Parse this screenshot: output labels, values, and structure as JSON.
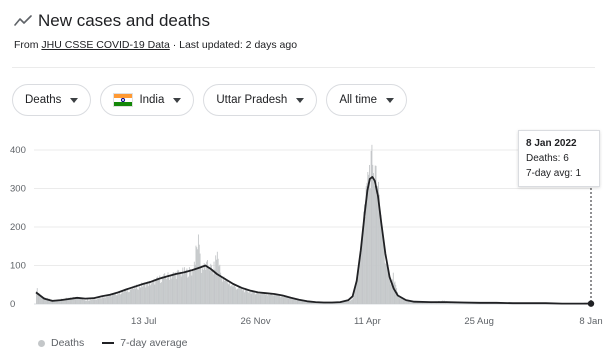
{
  "header": {
    "title": "New cases and deaths",
    "source_prefix": "From",
    "source_link": "JHU CSSE COVID-19 Data",
    "updated": "· Last updated: 2 days ago"
  },
  "filters": [
    {
      "label": "Deaths"
    },
    {
      "label": "India",
      "flag": "india-flag"
    },
    {
      "label": "Uttar Pradesh"
    },
    {
      "label": "All time"
    }
  ],
  "tooltip": {
    "date": "8 Jan 2022",
    "deaths": "Deaths: 6",
    "avg": "7-day avg: 1"
  },
  "legend": {
    "deaths": "Deaths",
    "avg": "7-day average"
  },
  "colors": {
    "bars": "#c4c7c9",
    "line": "#202124",
    "grid": "#ebebeb"
  },
  "chart_data": {
    "type": "bar",
    "title": "New cases and deaths",
    "x_ticks": [
      "13 Jul",
      "26 Nov",
      "11 Apr",
      "25 Aug",
      "8 Jan"
    ],
    "x_tick_days": [
      131,
      267,
      403,
      539,
      675
    ],
    "y_ticks": [
      0,
      100,
      200,
      300,
      400
    ],
    "ylim": [
      0,
      400
    ],
    "x_start": "2020-03-01",
    "x_end": "2022-01-08",
    "grid": true,
    "legend_position": "bottom-left",
    "series": [
      {
        "name": "Deaths",
        "type": "bar",
        "points": [
          [
            0,
            40
          ],
          [
            5,
            20
          ],
          [
            10,
            15
          ],
          [
            20,
            10
          ],
          [
            30,
            12
          ],
          [
            40,
            15
          ],
          [
            50,
            18
          ],
          [
            60,
            10
          ],
          [
            70,
            12
          ],
          [
            80,
            18
          ],
          [
            90,
            22
          ],
          [
            100,
            28
          ],
          [
            110,
            35
          ],
          [
            120,
            42
          ],
          [
            130,
            50
          ],
          [
            140,
            55
          ],
          [
            150,
            65
          ],
          [
            160,
            72
          ],
          [
            170,
            78
          ],
          [
            180,
            82
          ],
          [
            190,
            85
          ],
          [
            198,
            175
          ],
          [
            200,
            90
          ],
          [
            210,
            100
          ],
          [
            215,
            85
          ],
          [
            220,
            130
          ],
          [
            225,
            70
          ],
          [
            230,
            60
          ],
          [
            240,
            45
          ],
          [
            250,
            38
          ],
          [
            260,
            32
          ],
          [
            270,
            28
          ],
          [
            280,
            26
          ],
          [
            290,
            24
          ],
          [
            300,
            20
          ],
          [
            310,
            14
          ],
          [
            320,
            10
          ],
          [
            330,
            7
          ],
          [
            340,
            5
          ],
          [
            350,
            4
          ],
          [
            360,
            4
          ],
          [
            370,
            5
          ],
          [
            380,
            8
          ],
          [
            385,
            15
          ],
          [
            390,
            60
          ],
          [
            395,
            150
          ],
          [
            400,
            260
          ],
          [
            403,
            330
          ],
          [
            406,
            360
          ],
          [
            409,
            370
          ],
          [
            412,
            330
          ],
          [
            416,
            280
          ],
          [
            420,
            200
          ],
          [
            425,
            110
          ],
          [
            430,
            55
          ],
          [
            434,
            75
          ],
          [
            440,
            20
          ],
          [
            450,
            8
          ],
          [
            460,
            5
          ],
          [
            480,
            5
          ],
          [
            495,
            8
          ],
          [
            500,
            6
          ],
          [
            520,
            4
          ],
          [
            540,
            3
          ],
          [
            560,
            3
          ],
          [
            580,
            2
          ],
          [
            600,
            2
          ],
          [
            620,
            2
          ],
          [
            640,
            1
          ],
          [
            660,
            1
          ],
          [
            675,
            6
          ]
        ]
      },
      {
        "name": "7-day average",
        "type": "line",
        "points": [
          [
            0,
            30
          ],
          [
            5,
            22
          ],
          [
            10,
            14
          ],
          [
            20,
            8
          ],
          [
            30,
            10
          ],
          [
            40,
            13
          ],
          [
            50,
            16
          ],
          [
            60,
            14
          ],
          [
            70,
            15
          ],
          [
            80,
            20
          ],
          [
            90,
            24
          ],
          [
            100,
            30
          ],
          [
            110,
            38
          ],
          [
            120,
            45
          ],
          [
            130,
            52
          ],
          [
            140,
            58
          ],
          [
            150,
            66
          ],
          [
            160,
            72
          ],
          [
            170,
            78
          ],
          [
            180,
            82
          ],
          [
            190,
            88
          ],
          [
            200,
            95
          ],
          [
            206,
            100
          ],
          [
            212,
            92
          ],
          [
            220,
            78
          ],
          [
            230,
            65
          ],
          [
            240,
            52
          ],
          [
            250,
            42
          ],
          [
            260,
            35
          ],
          [
            270,
            30
          ],
          [
            280,
            28
          ],
          [
            290,
            26
          ],
          [
            300,
            22
          ],
          [
            310,
            16
          ],
          [
            320,
            11
          ],
          [
            330,
            7
          ],
          [
            340,
            5
          ],
          [
            350,
            4
          ],
          [
            360,
            4
          ],
          [
            370,
            5
          ],
          [
            380,
            10
          ],
          [
            385,
            20
          ],
          [
            390,
            60
          ],
          [
            395,
            140
          ],
          [
            400,
            240
          ],
          [
            403,
            295
          ],
          [
            406,
            325
          ],
          [
            409,
            330
          ],
          [
            412,
            320
          ],
          [
            416,
            280
          ],
          [
            420,
            210
          ],
          [
            425,
            130
          ],
          [
            430,
            70
          ],
          [
            435,
            40
          ],
          [
            440,
            22
          ],
          [
            450,
            10
          ],
          [
            460,
            6
          ],
          [
            480,
            5
          ],
          [
            500,
            5
          ],
          [
            520,
            4
          ],
          [
            540,
            3
          ],
          [
            560,
            3
          ],
          [
            580,
            2
          ],
          [
            600,
            2
          ],
          [
            620,
            2
          ],
          [
            640,
            1
          ],
          [
            660,
            1
          ],
          [
            675,
            1
          ]
        ]
      }
    ]
  }
}
